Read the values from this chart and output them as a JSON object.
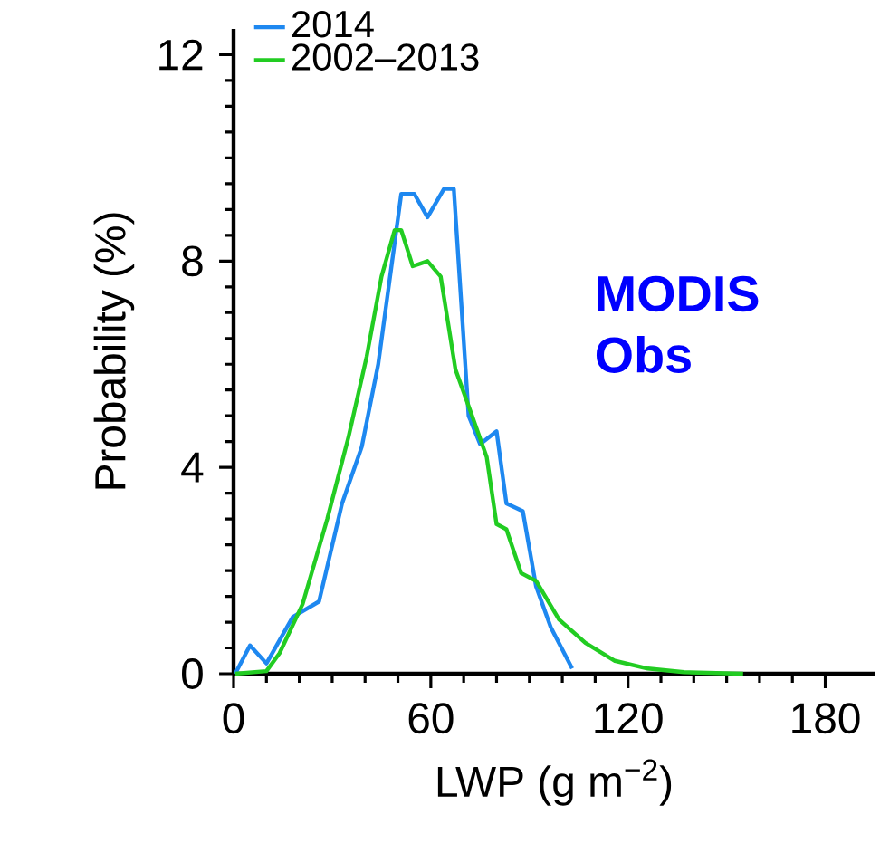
{
  "chart_data": {
    "type": "line",
    "xlabel": "LWP (g m$^{−2}$)",
    "ylabel": "Probability (%)",
    "annotations": [
      "MODIS Obs"
    ],
    "xlim": [
      0,
      195
    ],
    "ylim": [
      0,
      12.5
    ],
    "xticks": [
      0,
      60,
      120,
      180
    ],
    "yticks": [
      0,
      4,
      8,
      12
    ],
    "legend": "top left",
    "grid": false,
    "series": [
      {
        "name": "2014",
        "color": "#1e88f0",
        "x": [
          0.5,
          5,
          10,
          18,
          26,
          33,
          39,
          44,
          51,
          55,
          59,
          64,
          67,
          71.5,
          75,
          80,
          83,
          88,
          92,
          96.5,
          103
        ],
        "values": [
          0,
          0.55,
          0.2,
          1.1,
          1.4,
          3.3,
          4.4,
          6,
          9.3,
          9.3,
          8.85,
          9.4,
          9.4,
          5.0,
          4.45,
          4.7,
          3.3,
          3.15,
          1.7,
          0.9,
          0.1
        ]
      },
      {
        "name": "2002–2013",
        "color": "#22cc22",
        "x": [
          0.5,
          10,
          14,
          21,
          28.5,
          35,
          40.5,
          45,
          49,
          51,
          54.5,
          59,
          63,
          67.5,
          72,
          77,
          80,
          83,
          87.5,
          92,
          99,
          107,
          116,
          126,
          137,
          155
        ],
        "values": [
          0,
          0.05,
          0.4,
          1.35,
          3.0,
          4.6,
          6.15,
          7.7,
          8.6,
          8.6,
          7.9,
          8.0,
          7.7,
          5.9,
          5.1,
          4.2,
          2.9,
          2.8,
          1.95,
          1.8,
          1.05,
          0.6,
          0.25,
          0.1,
          0.03,
          0
        ]
      }
    ]
  }
}
